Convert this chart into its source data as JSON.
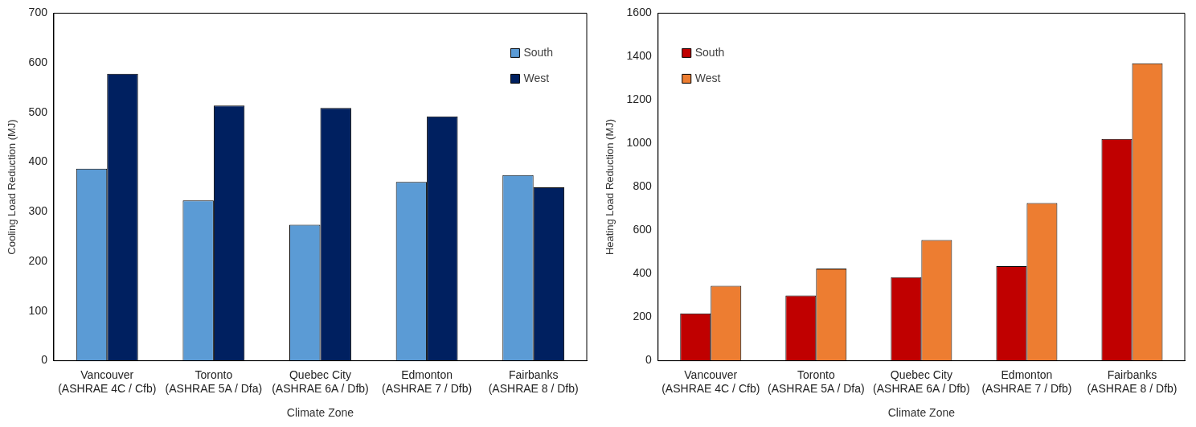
{
  "chart_data": [
    {
      "type": "bar",
      "xlabel": "Climate Zone",
      "ylabel": "Cooling Load Reduction (MJ)",
      "categories": [
        "Vancouver\n(ASHRAE 4C / Cfb)",
        "Toronto\n(ASHRAE 5A / Dfa)",
        "Quebec City\n(ASHRAE 6A / Dfb)",
        "Edmonton\n(ASHRAE 7 / Dfb)",
        "Fairbanks\n(ASHRAE 8 / Dfb)"
      ],
      "series": [
        {
          "name": "South",
          "color": "#5b9bd5",
          "values": [
            387,
            323,
            274,
            360,
            374
          ]
        },
        {
          "name": "West",
          "color": "#002060",
          "values": [
            578,
            514,
            509,
            492,
            349
          ]
        }
      ],
      "ylim": [
        0,
        700
      ],
      "yticks": [
        0,
        100,
        200,
        300,
        400,
        500,
        600,
        700
      ],
      "grid": false,
      "legend": "top right"
    },
    {
      "type": "bar",
      "xlabel": "Climate Zone",
      "ylabel": "Heating Load Reduction (MJ)",
      "categories": [
        "Vancouver\n(ASHRAE 4C / Cfb)",
        "Toronto\n(ASHRAE 5A / Dfa)",
        "Quebec City\n(ASHRAE 6A / Dfb)",
        "Edmonton\n(ASHRAE 7 / Dfb)",
        "Fairbanks\n(ASHRAE 8 / Dfb)"
      ],
      "series": [
        {
          "name": "South",
          "color": "#c00000",
          "values": [
            218,
            300,
            384,
            435,
            1021
          ]
        },
        {
          "name": "West",
          "color": "#ed7d31",
          "values": [
            345,
            424,
            556,
            726,
            1369
          ]
        }
      ],
      "ylim": [
        0,
        1600
      ],
      "yticks": [
        0,
        200,
        400,
        600,
        800,
        1000,
        1200,
        1400,
        1600
      ],
      "grid": false,
      "legend": "top left"
    }
  ]
}
